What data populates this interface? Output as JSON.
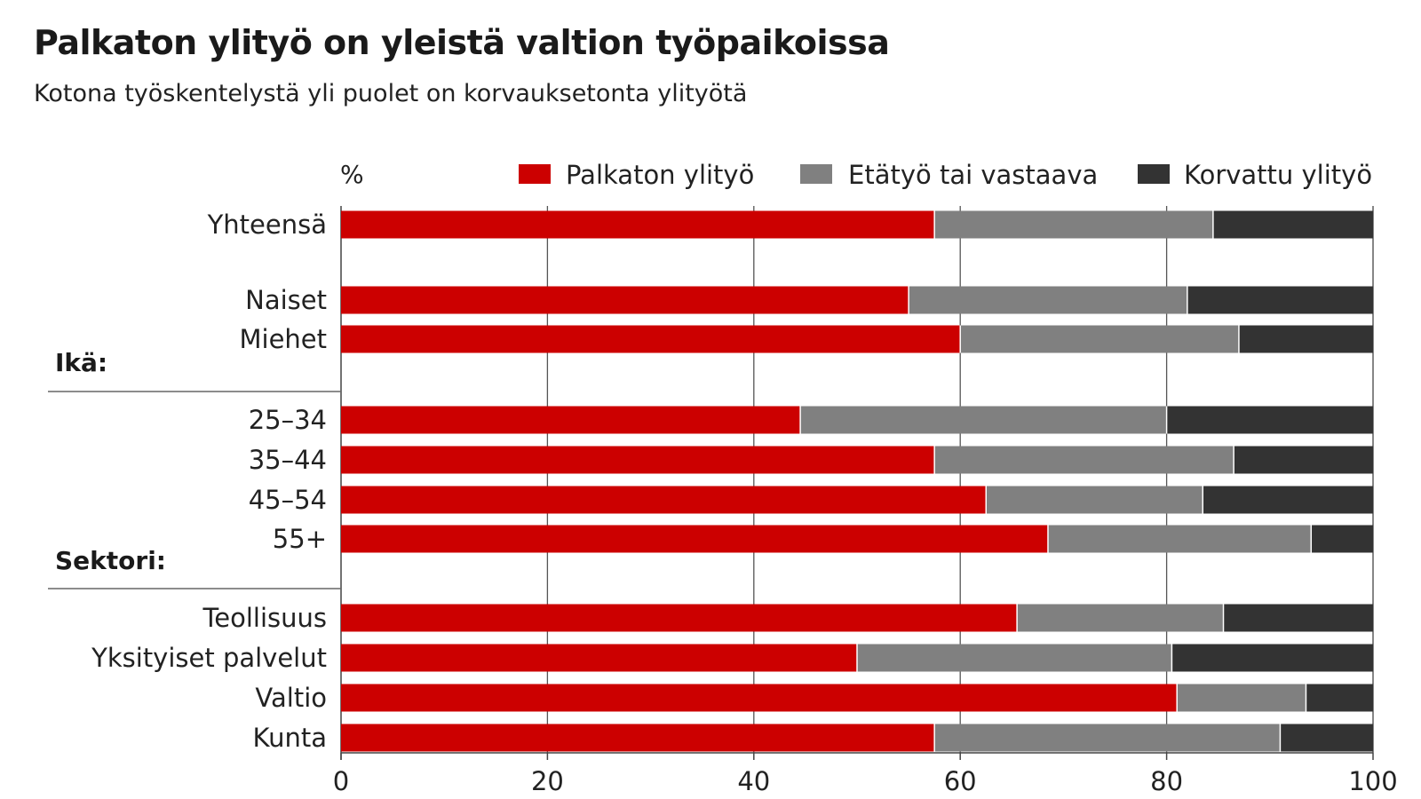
{
  "header": {
    "title": "Palkaton ylityö on yleistä valtion työpaikoissa",
    "subtitle": "Kotona työskentelystä yli puolet on korvauksetonta ylityötä"
  },
  "chart_data": {
    "type": "bar",
    "orientation": "horizontal",
    "stacked": true,
    "unit_label": "%",
    "xlim": [
      0,
      100
    ],
    "x_ticks": [
      0,
      20,
      40,
      60,
      80,
      100
    ],
    "grid": true,
    "legend_position": "top-right",
    "groups": [
      {
        "label": "",
        "categories": [
          "Yhteensä"
        ]
      },
      {
        "label": "",
        "categories": [
          "Naiset",
          "Miehet"
        ]
      },
      {
        "label": "Ikä:",
        "categories": [
          "25–34",
          "35–44",
          "45–54",
          "55+"
        ]
      },
      {
        "label": "Sektori:",
        "categories": [
          "Teollisuus",
          "Yksityiset palvelut",
          "Valtio",
          "Kunta"
        ]
      }
    ],
    "categories": [
      "Yhteensä",
      "Naiset",
      "Miehet",
      "25–34",
      "35–44",
      "45–54",
      "55+",
      "Teollisuus",
      "Yksityiset palvelut",
      "Valtio",
      "Kunta"
    ],
    "series": [
      {
        "name": "Palkaton ylityö",
        "color": "#cc0000",
        "values": [
          57.5,
          55,
          60,
          44.5,
          57.5,
          62.5,
          68.5,
          65.5,
          50,
          81,
          57.5
        ]
      },
      {
        "name": "Etätyö tai vastaava",
        "color": "#808080",
        "values": [
          27,
          27,
          27,
          35.5,
          29,
          21,
          25.5,
          20,
          30.5,
          12.5,
          33.5
        ]
      },
      {
        "name": "Korvattu ylityö",
        "color": "#333333",
        "values": [
          15.5,
          18,
          13,
          20,
          13.5,
          16.5,
          6,
          14.5,
          19.5,
          6.5,
          9
        ]
      }
    ]
  }
}
